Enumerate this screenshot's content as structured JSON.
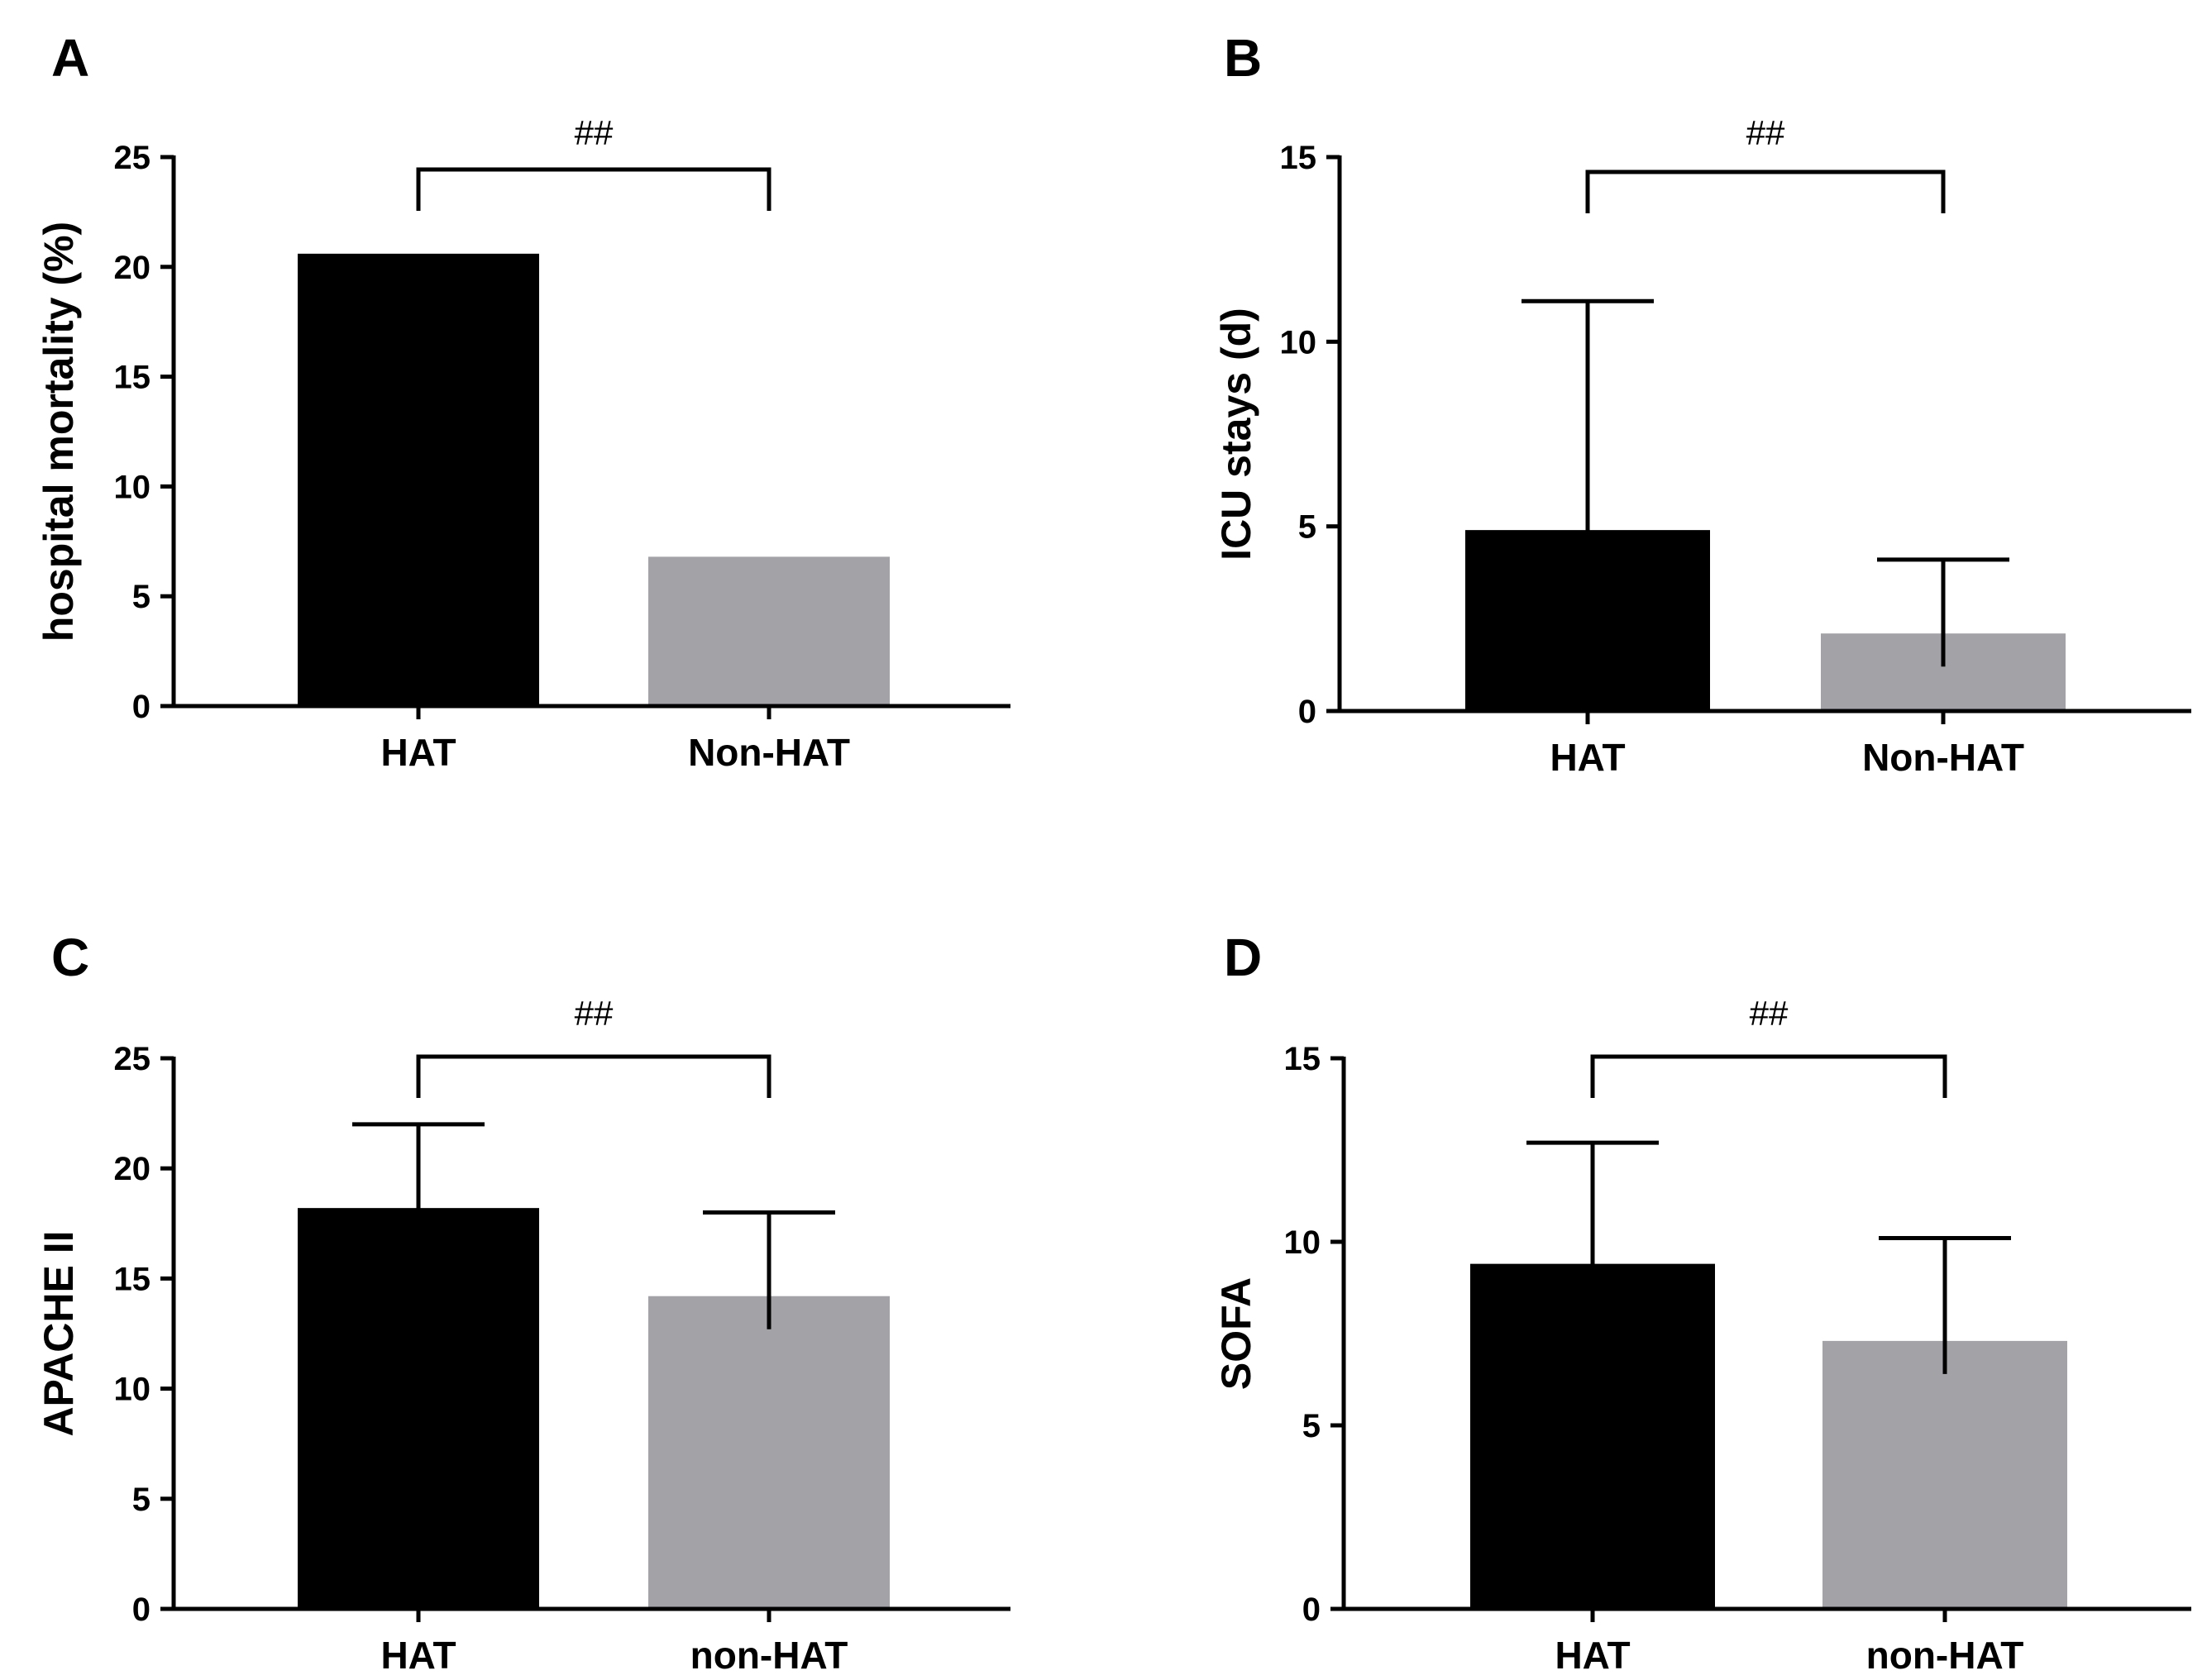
{
  "colors": {
    "hat": "#000000",
    "non_hat": "#a3a2a7",
    "axis": "#000000"
  },
  "chart_data": [
    {
      "panel": "A",
      "type": "bar",
      "categories": [
        "HAT",
        "Non-HAT"
      ],
      "values": [
        20.6,
        6.8
      ],
      "error_bars": [
        null,
        null
      ],
      "ylabel": "hospital mortality (%)",
      "xlabel": "",
      "ylim": [
        0,
        25
      ],
      "yticks": [
        "0",
        "5",
        "10",
        "15",
        "20",
        "25"
      ],
      "significance": "##"
    },
    {
      "panel": "B",
      "type": "bar",
      "categories": [
        "HAT",
        "Non-HAT"
      ],
      "values": [
        4.9,
        2.1
      ],
      "error_bars": [
        6.2,
        2.0
      ],
      "ylabel": "ICU stays (d)",
      "xlabel": "",
      "ylim": [
        0,
        15
      ],
      "yticks": [
        "0",
        "5",
        "10",
        "15"
      ],
      "significance": "##"
    },
    {
      "panel": "C",
      "type": "bar",
      "categories": [
        "HAT",
        "non-HAT"
      ],
      "values": [
        18.2,
        14.2
      ],
      "error_bars": [
        3.8,
        3.8
      ],
      "ylabel": "APACHE II",
      "xlabel": "",
      "ylim": [
        0,
        25
      ],
      "yticks": [
        "0",
        "5",
        "10",
        "15",
        "20",
        "25"
      ],
      "significance": "##"
    },
    {
      "panel": "D",
      "type": "bar",
      "categories": [
        "HAT",
        "non-HAT"
      ],
      "values": [
        9.4,
        7.3
      ],
      "error_bars": [
        3.3,
        2.8
      ],
      "ylabel": "SOFA",
      "xlabel": "",
      "ylim": [
        0,
        15
      ],
      "yticks": [
        "0",
        "5",
        "10",
        "15"
      ],
      "significance": "##"
    }
  ]
}
